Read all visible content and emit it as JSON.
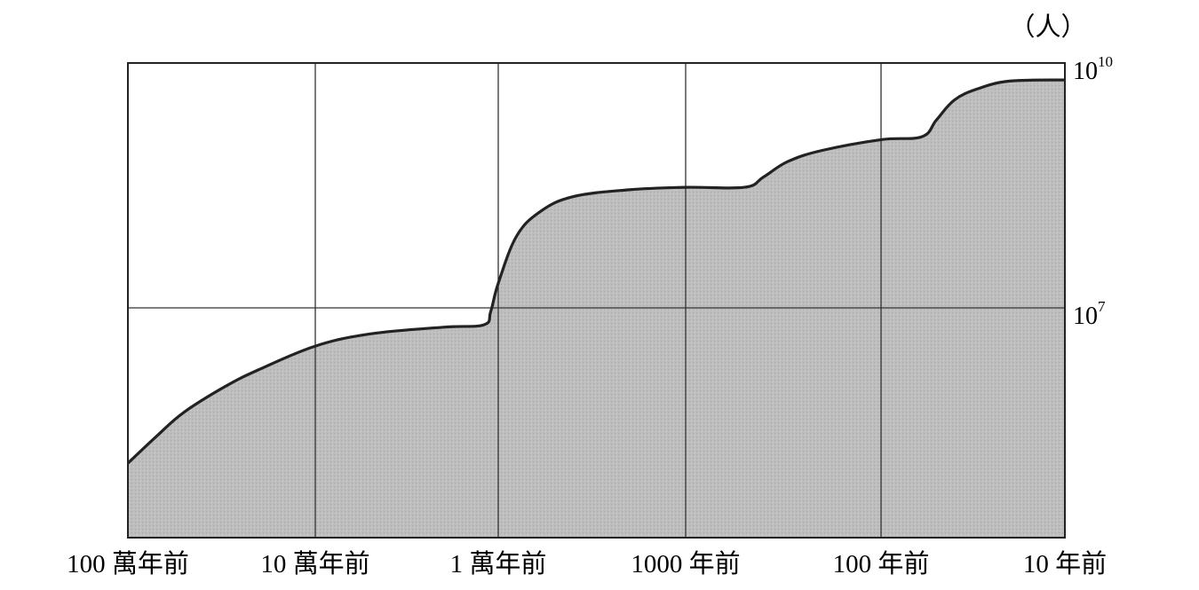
{
  "chart_data": {
    "type": "area",
    "title": "",
    "xlabel": "",
    "ylabel": "（人）",
    "x_scale": "log",
    "y_scale": "log",
    "x_direction": "years ago, decreasing to the right",
    "x_ticks": [
      {
        "years_ago": 1000000,
        "label": "100 萬年前"
      },
      {
        "years_ago": 100000,
        "label": "10 萬年前"
      },
      {
        "years_ago": 10000,
        "label": "1 萬年前"
      },
      {
        "years_ago": 1000,
        "label": "1000 年前"
      },
      {
        "years_ago": 100,
        "label": "100 年前"
      },
      {
        "years_ago": 10,
        "label": "10 年前"
      }
    ],
    "y_ticks": [
      {
        "value": 10000000,
        "base": "10",
        "exp": "7"
      },
      {
        "value": 10000000000,
        "base": "10",
        "exp": "10"
      }
    ],
    "ylim": [
      30000,
      10000000000
    ],
    "xlim": [
      1000000,
      10
    ],
    "grid": true,
    "fill_color": "#c0c0c0",
    "line_color": "#222222",
    "series": [
      {
        "values": [
          {
            "x": 1000000,
            "y": 125000
          },
          {
            "x": 700000,
            "y": 270000
          },
          {
            "x": 500000,
            "y": 530000
          },
          {
            "x": 300000,
            "y": 1100000
          },
          {
            "x": 200000,
            "y": 1750000
          },
          {
            "x": 100000,
            "y": 3400000
          },
          {
            "x": 50000,
            "y": 4800000
          },
          {
            "x": 20000,
            "y": 5800000
          },
          {
            "x": 12000,
            "y": 6200000
          },
          {
            "x": 11000,
            "y": 9000000
          },
          {
            "x": 10000,
            "y": 20000000
          },
          {
            "x": 8000,
            "y": 75000000
          },
          {
            "x": 6000,
            "y": 150000000
          },
          {
            "x": 4000,
            "y": 230000000
          },
          {
            "x": 2000,
            "y": 280000000
          },
          {
            "x": 1000,
            "y": 300000000
          },
          {
            "x": 500,
            "y": 300000000
          },
          {
            "x": 400,
            "y": 400000000
          },
          {
            "x": 300,
            "y": 620000000
          },
          {
            "x": 200,
            "y": 850000000
          },
          {
            "x": 100,
            "y": 1150000000
          },
          {
            "x": 60,
            "y": 1250000000
          },
          {
            "x": 50,
            "y": 2000000000
          },
          {
            "x": 40,
            "y": 3500000000
          },
          {
            "x": 30,
            "y": 4800000000
          },
          {
            "x": 20,
            "y": 6000000000
          },
          {
            "x": 10,
            "y": 6200000000
          }
        ]
      }
    ]
  }
}
